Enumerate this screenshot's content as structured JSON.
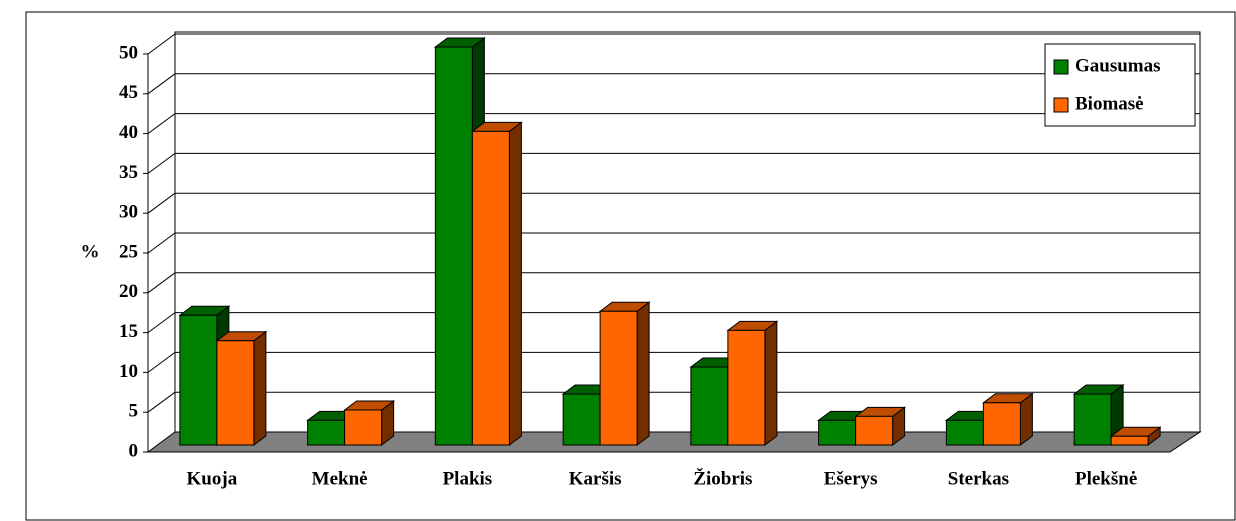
{
  "chart_data": {
    "type": "bar3d",
    "y_label": "%",
    "categories": [
      "Kuoja",
      "Meknė",
      "Plakis",
      "Karšis",
      "Žiobris",
      "Ešerys",
      "Sterkas",
      "Plekšnė"
    ],
    "series": [
      {
        "name": "Gausumas",
        "color": "#008000",
        "values": [
          16.3,
          3.1,
          50,
          6.4,
          9.8,
          3.1,
          3.1,
          6.4
        ]
      },
      {
        "name": "Biomasė",
        "color": "#ff6600",
        "values": [
          13.1,
          4.4,
          39.4,
          16.8,
          14.4,
          3.6,
          5.3,
          1.1
        ]
      }
    ],
    "ylim": [
      0,
      50
    ],
    "yticks": [
      0,
      5,
      10,
      15,
      20,
      25,
      30,
      35,
      40,
      45,
      50
    ],
    "grid": true,
    "legend": "top-right"
  }
}
